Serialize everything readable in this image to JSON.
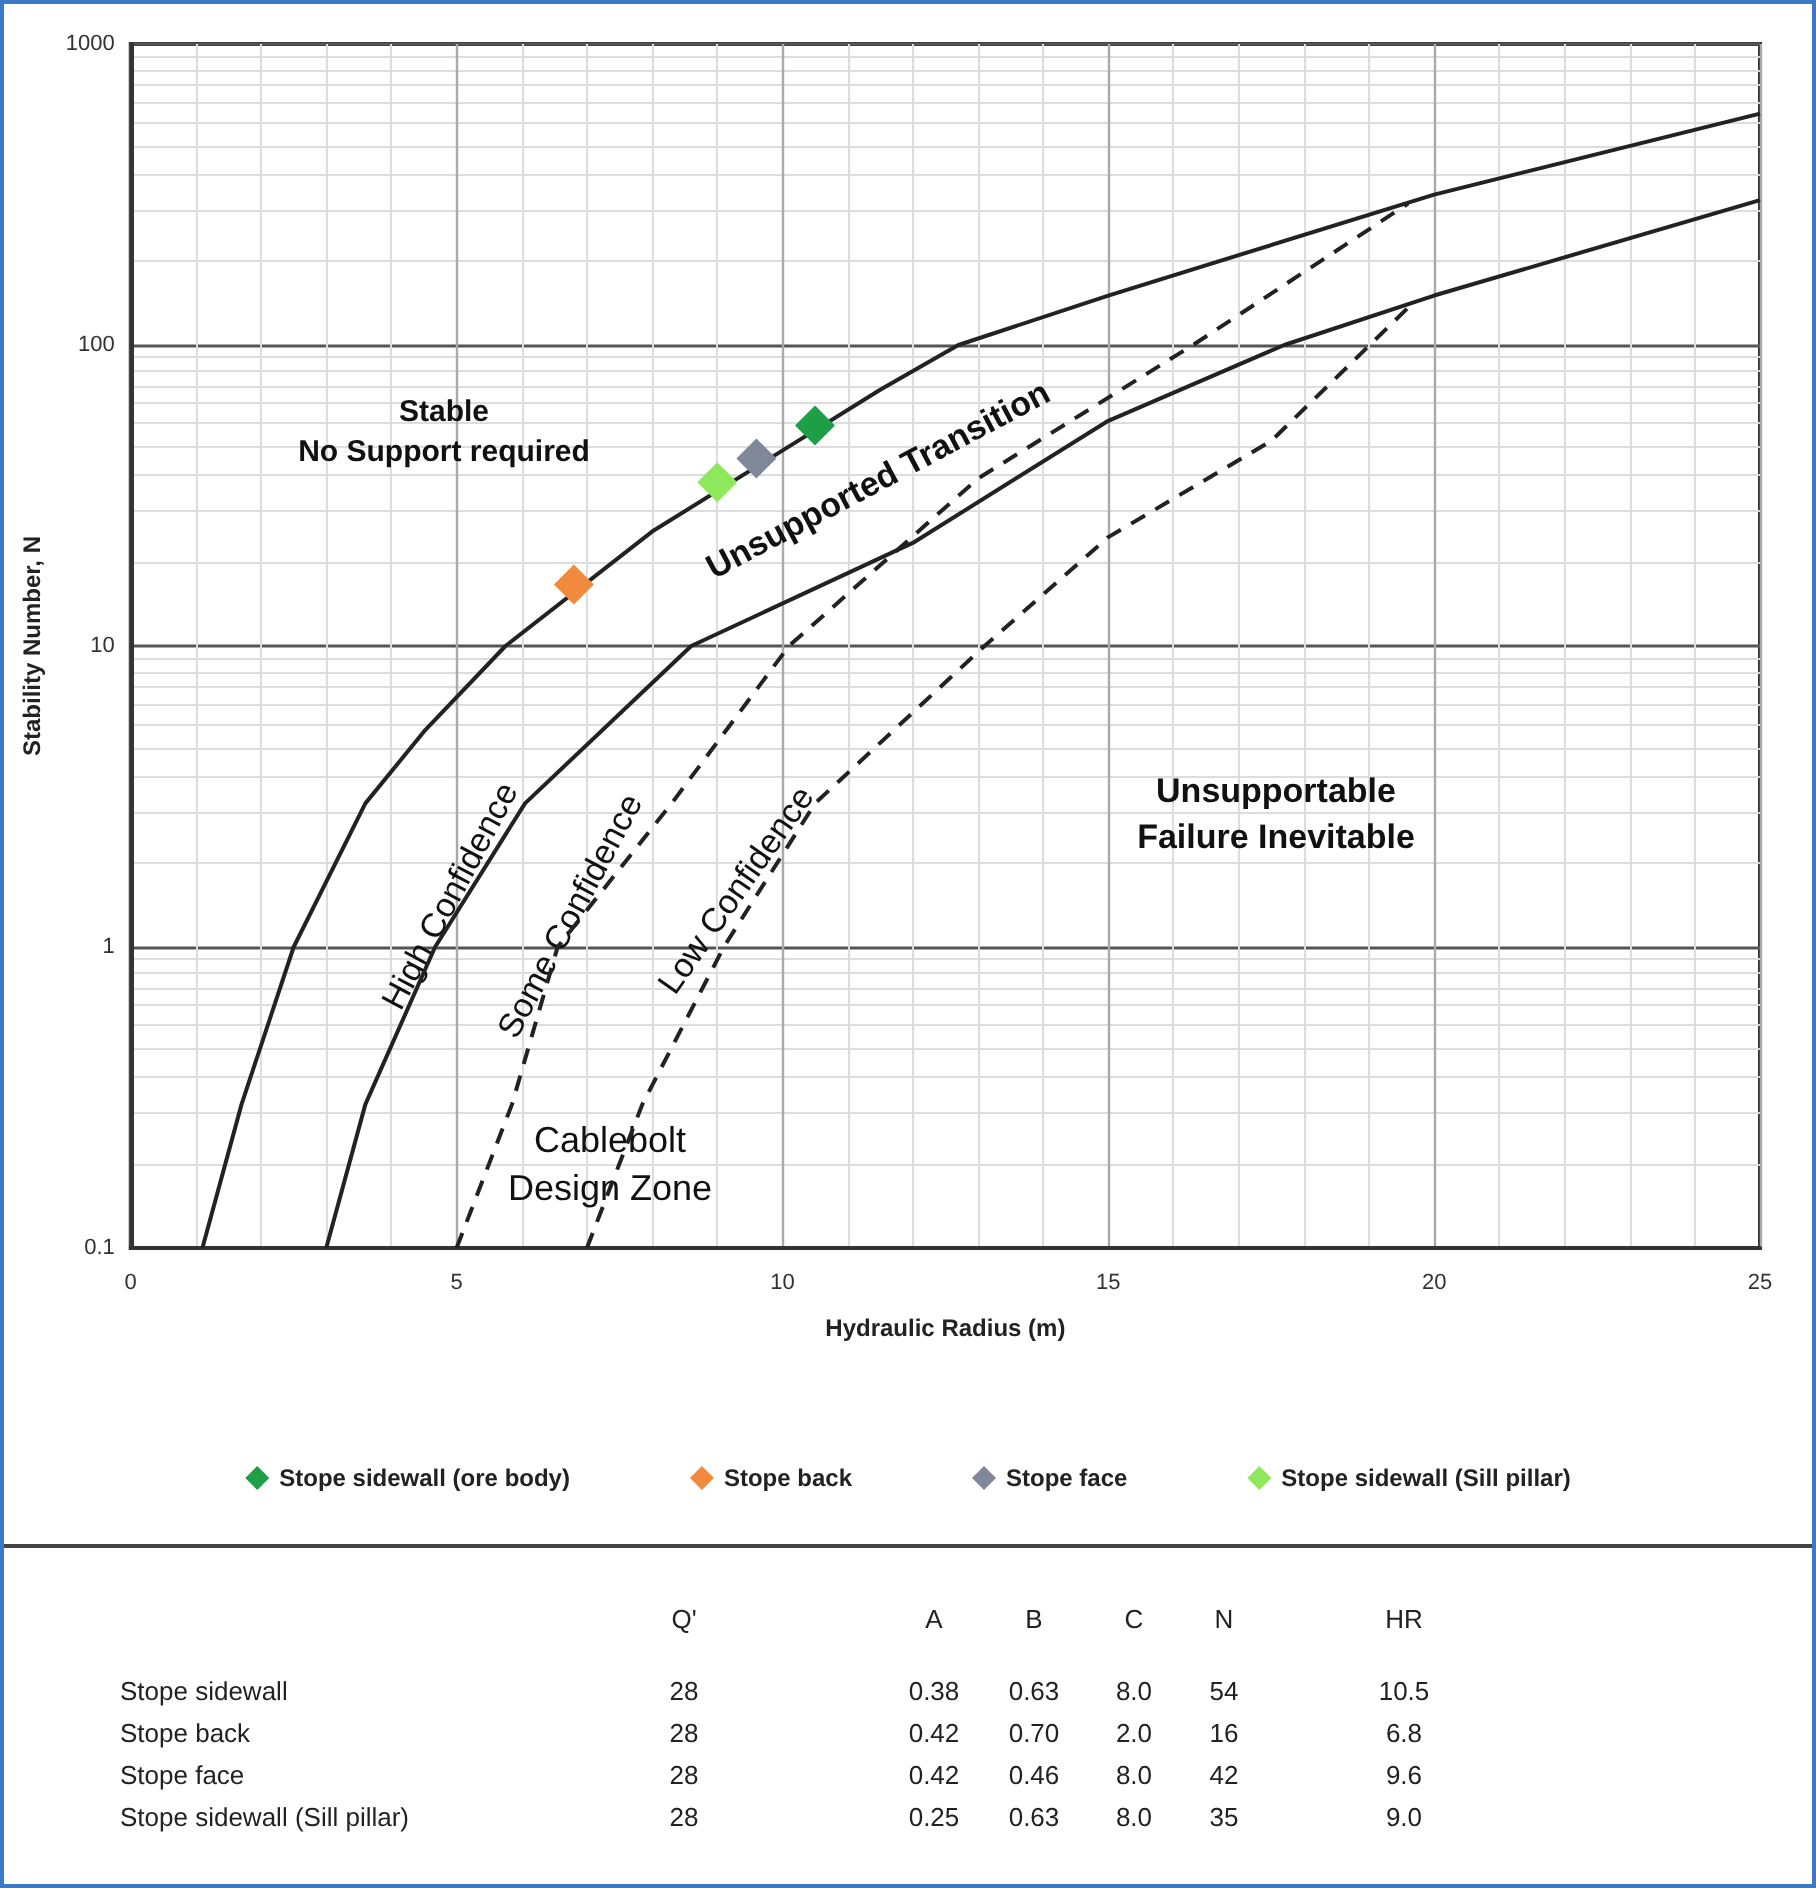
{
  "chart_data": [
    {
      "type": "scatter",
      "xlabel": "Hydraulic Radius (m)",
      "ylabel": "Stability Number, N",
      "log": "y",
      "xlim": [
        0,
        25
      ],
      "xticks": [
        0,
        5,
        10,
        15,
        20,
        25
      ],
      "ylim": [
        0.1,
        1000
      ],
      "yticks": [
        0.1,
        1,
        10,
        100,
        1000
      ],
      "grid": true,
      "legend": "bottom",
      "marker": "diamond",
      "series": [
        {
          "type": "line",
          "marker": "none",
          "line_style": "solid",
          "color": "#222222",
          "x": [
            1.1,
            1.7,
            2.5,
            3.6,
            4.5,
            5.75,
            8,
            11.5,
            12.7,
            15,
            20,
            25
          ],
          "values": [
            0.1,
            0.3,
            1,
            3,
            5.2,
            10,
            24,
            71,
            100,
            146,
            316,
            587
          ]
        },
        {
          "type": "line",
          "marker": "none",
          "line_style": "solid",
          "color": "#222222",
          "x": [
            3.0,
            3.6,
            4.67,
            6.05,
            8.6,
            12,
            15,
            17.7,
            20,
            25
          ],
          "values": [
            0.1,
            0.3,
            1,
            3,
            10,
            22,
            56,
            100,
            146,
            303
          ]
        },
        {
          "type": "line",
          "marker": "none",
          "line_style": "dashed",
          "color": "#222222",
          "x": [
            5.0,
            5.85,
            6.55,
            8.3,
            10.1,
            13,
            16.3,
            19.6
          ],
          "values": [
            0.1,
            0.3,
            1,
            3,
            10,
            36,
            100,
            295
          ]
        },
        {
          "type": "line",
          "marker": "none",
          "line_style": "dashed",
          "color": "#222222",
          "x": [
            7.0,
            7.85,
            9.1,
            10.5,
            13.1,
            15,
            17.5,
            19.6
          ],
          "values": [
            0.1,
            0.3,
            1,
            3,
            10,
            23,
            48,
            133
          ]
        },
        {
          "name": "Stope sidewall (ore body)",
          "color": "#1f9e48",
          "x": [
            10.5
          ],
          "values": [
            54
          ]
        },
        {
          "name": "Stope back",
          "color": "#f28a3e",
          "x": [
            6.8
          ],
          "values": [
            16
          ]
        },
        {
          "name": "Stope face",
          "color": "#7f8799",
          "x": [
            9.6
          ],
          "values": [
            42
          ]
        },
        {
          "name": "Stope sidewall (Sill pillar)",
          "color": "#8ee85c",
          "x": [
            9.0
          ],
          "values": [
            35
          ]
        }
      ],
      "annotations": [
        "Stable\nNo Support required",
        "Unsupported Transition",
        "High Confidence",
        "Some Confidence",
        "Low Confidence",
        "Cablebolt\nDesign Zone",
        "Unsupportable\nFailure Inevitable"
      ]
    },
    {
      "type": "other",
      "categories": [
        "Stope sidewall",
        "Stope back",
        "Stope face",
        "Stope sidewall (Sill pillar)"
      ],
      "data_labels": true,
      "series": [
        {
          "name": "Q'",
          "values": [
            28,
            28,
            28,
            28
          ]
        },
        {
          "name": "A",
          "values": [
            0.38,
            0.42,
            0.42,
            0.25
          ],
          "value_labels": [
            "0.38",
            "0.42",
            "0.42",
            "0.25"
          ]
        },
        {
          "name": "B",
          "values": [
            0.63,
            0.7,
            0.46,
            0.63
          ],
          "value_labels": [
            "0.63",
            "0.70",
            "0.46",
            "0.63"
          ]
        },
        {
          "name": "C",
          "values": [
            8,
            2,
            8,
            8
          ],
          "value_labels": [
            "8.0",
            "2.0",
            "8.0",
            "8.0"
          ]
        },
        {
          "name": "N",
          "values": [
            54,
            16,
            42,
            35
          ]
        },
        {
          "name": "HR",
          "values": [
            10.5,
            6.8,
            9.6,
            9.0
          ],
          "value_labels": [
            "10.5",
            "6.8",
            "9.6",
            "9.0"
          ]
        }
      ]
    }
  ]
}
